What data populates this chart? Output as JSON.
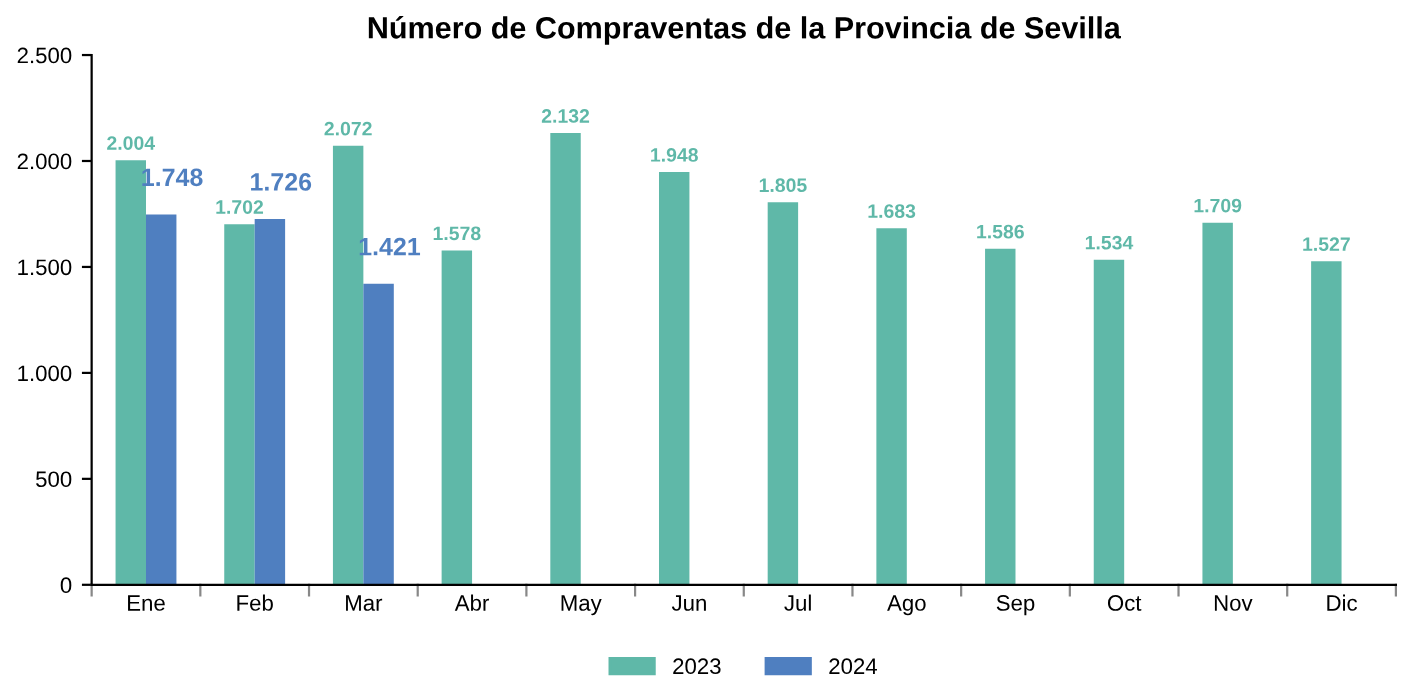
{
  "chart_data": {
    "type": "bar",
    "title": "Número de Compraventas de la Provincia de Sevilla",
    "categories": [
      "Ene",
      "Feb",
      "Mar",
      "Abr",
      "May",
      "Jun",
      "Jul",
      "Ago",
      "Sep",
      "Oct",
      "Nov",
      "Dic"
    ],
    "series": [
      {
        "name": "2023",
        "color": "#5fb8a8",
        "values": [
          2004,
          1702,
          2072,
          1578,
          2132,
          1948,
          1805,
          1683,
          1586,
          1534,
          1709,
          1527
        ],
        "value_labels": [
          "2.004",
          "1.702",
          "2.072",
          "1.578",
          "2.132",
          "1.948",
          "1.805",
          "1.683",
          "1.586",
          "1.534",
          "1.709",
          "1.527"
        ]
      },
      {
        "name": "2024",
        "color": "#4f7fc0",
        "values": [
          1748,
          1726,
          1421,
          null,
          null,
          null,
          null,
          null,
          null,
          null,
          null,
          null
        ],
        "value_labels": [
          "1.748",
          "1.726",
          "1.421",
          null,
          null,
          null,
          null,
          null,
          null,
          null,
          null,
          null
        ]
      }
    ],
    "ylim": [
      0,
      2500
    ],
    "yticks": [
      {
        "value": 0,
        "label": "0"
      },
      {
        "value": 500,
        "label": "500"
      },
      {
        "value": 1000,
        "label": "1.000"
      },
      {
        "value": 1500,
        "label": "1.500"
      },
      {
        "value": 2000,
        "label": "2.000"
      },
      {
        "value": 2500,
        "label": "2.500"
      }
    ],
    "grid": false,
    "legend": "bottom"
  }
}
